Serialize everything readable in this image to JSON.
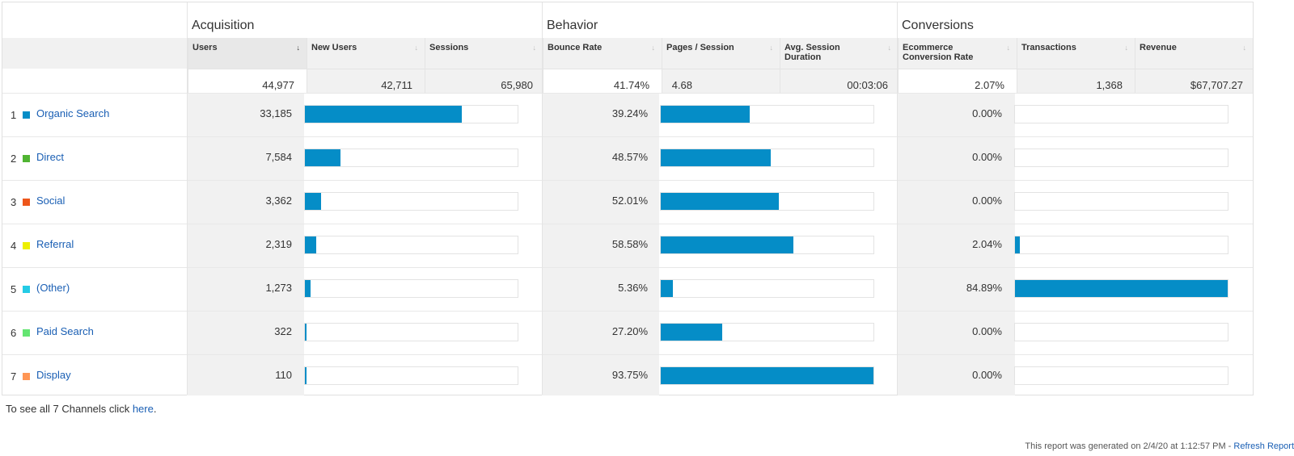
{
  "groups": {
    "acquisition": "Acquisition",
    "behavior": "Behavior",
    "conversions": "Conversions"
  },
  "columns": {
    "users": "Users",
    "new_users": "New Users",
    "sessions": "Sessions",
    "bounce_rate": "Bounce Rate",
    "pages_session": "Pages / Session",
    "avg_session_duration": "Avg. Session Duration",
    "ecommerce_conversion_rate": "Ecommerce Conversion Rate",
    "transactions": "Transactions",
    "revenue": "Revenue"
  },
  "totals": {
    "users": "44,977",
    "new_users": "42,711",
    "sessions": "65,980",
    "bounce_rate": "41.74%",
    "pages_session": "4.68",
    "avg_session_duration": "00:03:06",
    "ecommerce_conversion_rate": "2.07%",
    "transactions": "1,368",
    "revenue": "$67,707.27"
  },
  "rows": [
    {
      "num": "1",
      "label": "Organic Search",
      "color": "#058dc7",
      "users": "33,185",
      "users_fraction": 0.7378,
      "bounce_rate": "39.24%",
      "bounce_fraction": 0.4186,
      "conv_rate": "0.00%",
      "conv_fraction": 0.0
    },
    {
      "num": "2",
      "label": "Direct",
      "color": "#50b432",
      "users": "7,584",
      "users_fraction": 0.1686,
      "bounce_rate": "48.57%",
      "bounce_fraction": 0.5181,
      "conv_rate": "0.00%",
      "conv_fraction": 0.0
    },
    {
      "num": "3",
      "label": "Social",
      "color": "#ed561b",
      "users": "3,362",
      "users_fraction": 0.0748,
      "bounce_rate": "52.01%",
      "bounce_fraction": 0.5548,
      "conv_rate": "0.00%",
      "conv_fraction": 0.0
    },
    {
      "num": "4",
      "label": "Referral",
      "color": "#edef00",
      "users": "2,319",
      "users_fraction": 0.0516,
      "bounce_rate": "58.58%",
      "bounce_fraction": 0.6249,
      "conv_rate": "2.04%",
      "conv_fraction": 0.024
    },
    {
      "num": "5",
      "label": "(Other)",
      "color": "#24cbe5",
      "users": "1,273",
      "users_fraction": 0.0283,
      "bounce_rate": "5.36%",
      "bounce_fraction": 0.0572,
      "conv_rate": "84.89%",
      "conv_fraction": 1.0
    },
    {
      "num": "6",
      "label": "Paid Search",
      "color": "#64e572",
      "users": "322",
      "users_fraction": 0.0072,
      "bounce_rate": "27.20%",
      "bounce_fraction": 0.2901,
      "conv_rate": "0.00%",
      "conv_fraction": 0.0
    },
    {
      "num": "7",
      "label": "Display",
      "color": "#ff9655",
      "users": "110",
      "users_fraction": 0.0024,
      "bounce_rate": "93.75%",
      "bounce_fraction": 1.0,
      "conv_rate": "0.00%",
      "conv_fraction": 0.0
    }
  ],
  "footer": {
    "text": "To see all 7 Channels click ",
    "link": "here",
    "suffix": "."
  },
  "generated": {
    "text": "This report was generated on 2/4/20 at 1:12:57 PM - ",
    "link": "Refresh Report"
  }
}
